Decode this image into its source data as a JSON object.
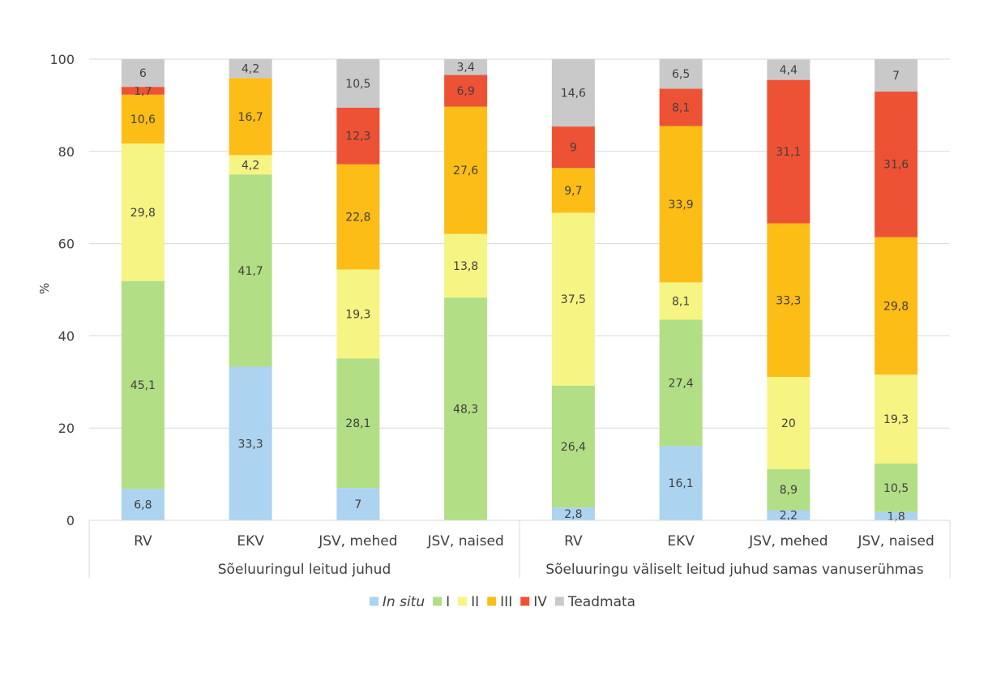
{
  "chart_data": {
    "type": "bar",
    "stacked": true,
    "ylabel": "%",
    "ylim": [
      0,
      100
    ],
    "yticks": [
      0,
      20,
      40,
      60,
      80,
      100
    ],
    "grid": true,
    "legend_position": "bottom",
    "categories": [
      "RV",
      "EKV",
      "JSV, mehed",
      "JSV, naised",
      "RV",
      "EKV",
      "JSV, mehed",
      "JSV, naised"
    ],
    "groups": [
      {
        "label": "Sõeluuringul leitud juhud",
        "span": [
          0,
          3
        ]
      },
      {
        "label": "Sõeluuringu väliselt leitud juhud samas vanuserühmas",
        "span": [
          4,
          7
        ]
      }
    ],
    "series": [
      {
        "name": "In situ",
        "italic": true,
        "color": "#acd3ef",
        "values": [
          6.8,
          33.3,
          7,
          0,
          2.8,
          16.1,
          2.2,
          1.8
        ],
        "labels": [
          "6,8",
          "33,3",
          "7",
          "",
          "2,8",
          "16,1",
          "2,2",
          "1,8"
        ]
      },
      {
        "name": "I",
        "color": "#b2de85",
        "values": [
          45.1,
          41.7,
          28.1,
          48.3,
          26.4,
          27.4,
          8.9,
          10.5
        ],
        "labels": [
          "45,1",
          "41,7",
          "28,1",
          "48,3",
          "26,4",
          "27,4",
          "8,9",
          "10,5"
        ]
      },
      {
        "name": "II",
        "color": "#f6f482",
        "values": [
          29.8,
          4.2,
          19.3,
          13.8,
          37.5,
          8.1,
          20,
          19.3
        ],
        "labels": [
          "29,8",
          "4,2",
          "19,3",
          "13,8",
          "37,5",
          "8,1",
          "20",
          "19,3"
        ]
      },
      {
        "name": "III",
        "color": "#fdbd17",
        "values": [
          10.6,
          16.7,
          22.8,
          27.6,
          9.7,
          33.9,
          33.3,
          29.8
        ],
        "labels": [
          "10,6",
          "16,7",
          "22,8",
          "27,6",
          "9,7",
          "33,9",
          "33,3",
          "29,8"
        ]
      },
      {
        "name": "IV",
        "color": "#ee5235",
        "values": [
          1.7,
          0,
          12.3,
          6.9,
          9,
          8.1,
          31.1,
          31.6
        ],
        "labels": [
          "1,7",
          "",
          "12,3",
          "6,9",
          "9",
          "8,1",
          "31,1",
          "31,6"
        ]
      },
      {
        "name": "Teadmata",
        "color": "#c9c9c9",
        "values": [
          6,
          4.2,
          10.5,
          3.4,
          14.6,
          6.5,
          4.4,
          7
        ],
        "labels": [
          "6",
          "4,2",
          "10,5",
          "3,4",
          "14,6",
          "6,5",
          "4,4",
          "7"
        ]
      }
    ]
  }
}
